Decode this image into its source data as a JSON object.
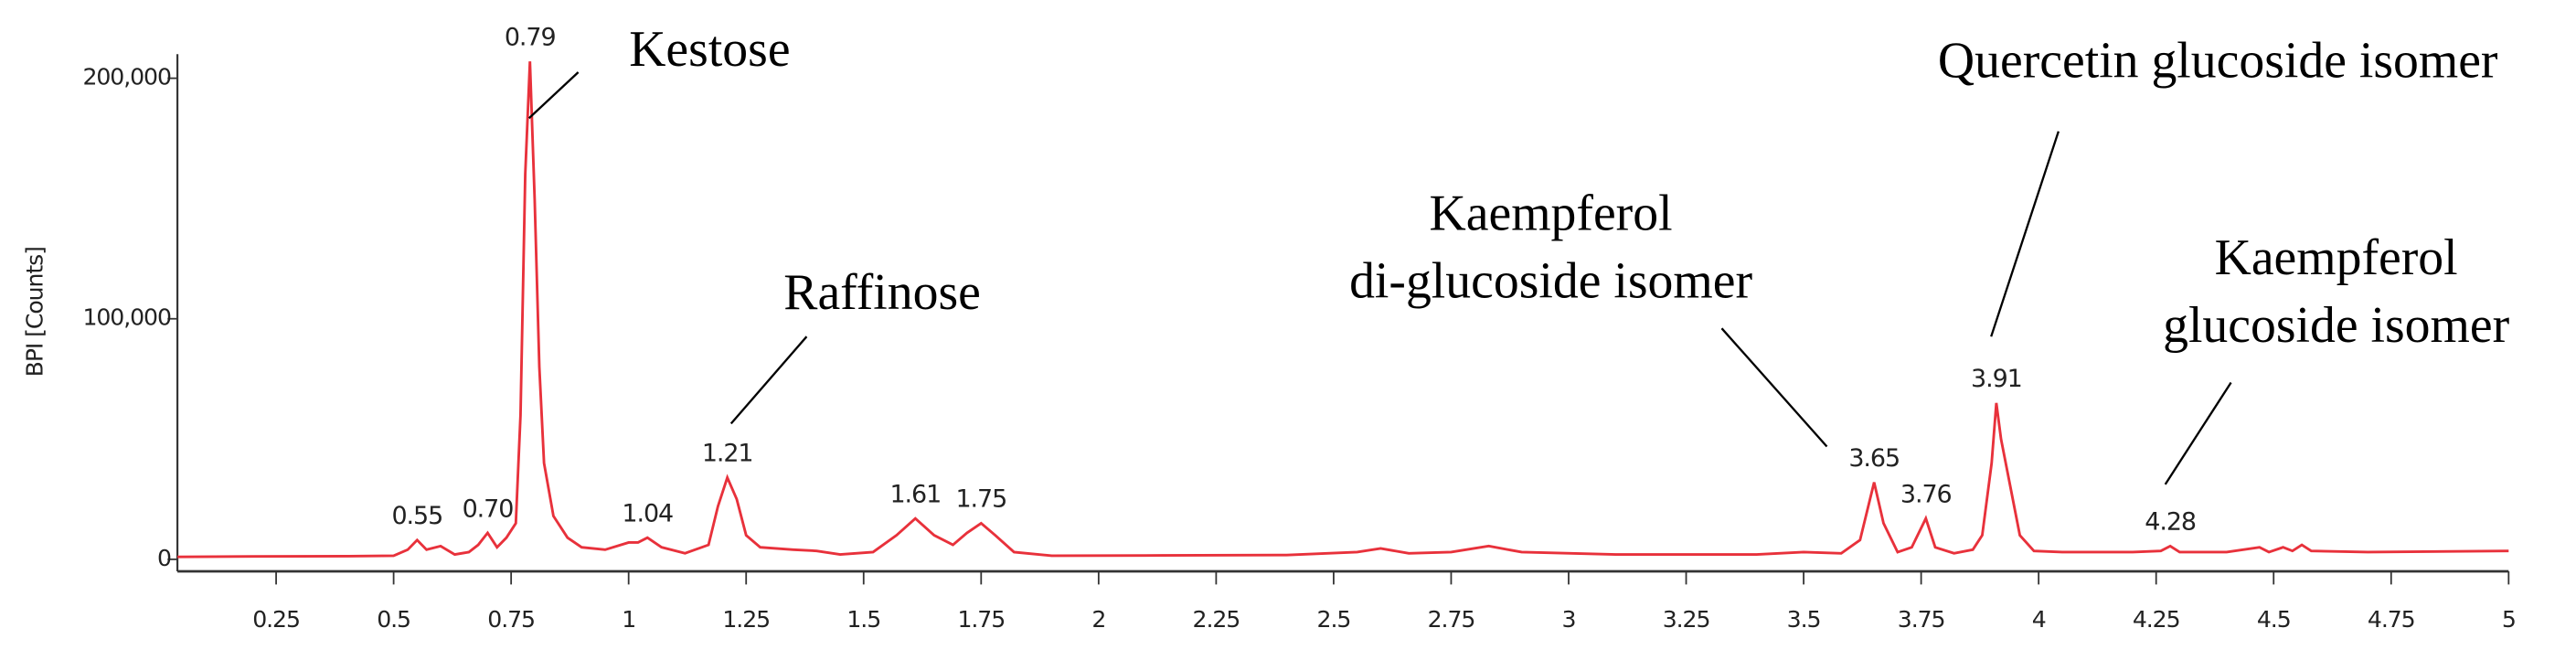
{
  "chart_data": {
    "type": "line",
    "y_label": "BPI [Counts]",
    "xlim": [
      0.04,
      5
    ],
    "ylim": [
      -5000,
      210000
    ],
    "xticks": [
      0.25,
      0.5,
      0.75,
      1,
      1.25,
      1.5,
      1.75,
      2,
      2.25,
      2.5,
      2.75,
      3,
      3.25,
      3.5,
      3.75,
      4,
      4.25,
      4.5,
      4.75,
      5
    ],
    "yticks": [
      0,
      {
        "value": 100000,
        "label": "100,000"
      },
      {
        "value": 200000,
        "label": "200,000"
      }
    ],
    "x": [
      0.04,
      0.2,
      0.4,
      0.5,
      0.53,
      0.55,
      0.57,
      0.6,
      0.63,
      0.66,
      0.68,
      0.7,
      0.72,
      0.74,
      0.76,
      0.77,
      0.78,
      0.79,
      0.8,
      0.81,
      0.82,
      0.84,
      0.87,
      0.9,
      0.95,
      1.0,
      1.02,
      1.04,
      1.07,
      1.12,
      1.17,
      1.19,
      1.21,
      1.23,
      1.25,
      1.28,
      1.35,
      1.4,
      1.45,
      1.52,
      1.57,
      1.61,
      1.65,
      1.69,
      1.72,
      1.75,
      1.78,
      1.82,
      1.9,
      2.1,
      2.4,
      2.55,
      2.6,
      2.66,
      2.75,
      2.83,
      2.9,
      3.1,
      3.4,
      3.5,
      3.58,
      3.62,
      3.65,
      3.67,
      3.7,
      3.73,
      3.76,
      3.78,
      3.82,
      3.86,
      3.88,
      3.9,
      3.91,
      3.92,
      3.94,
      3.96,
      3.99,
      4.05,
      4.2,
      4.26,
      4.28,
      4.3,
      4.4,
      4.47,
      4.49,
      4.52,
      4.54,
      4.56,
      4.58,
      4.7,
      5.0
    ],
    "series": [
      {
        "color": "#e8313b",
        "values": [
          1000,
          1200,
          1300,
          1500,
          4000,
          8000,
          4000,
          5500,
          2000,
          3000,
          6000,
          11000,
          5000,
          9000,
          15000,
          60000,
          160000,
          207000,
          150000,
          80000,
          40000,
          18000,
          9000,
          5000,
          4000,
          7000,
          7000,
          9000,
          5000,
          2500,
          6000,
          22000,
          34000,
          25000,
          10000,
          5000,
          4000,
          3500,
          2000,
          3000,
          10000,
          17000,
          10000,
          6000,
          11000,
          15000,
          10000,
          3000,
          1500,
          1600,
          1800,
          3000,
          4500,
          2500,
          3000,
          5500,
          3000,
          2000,
          2000,
          3000,
          2500,
          8000,
          32000,
          15000,
          3000,
          5000,
          17000,
          5000,
          2500,
          4000,
          10000,
          40000,
          65000,
          50000,
          30000,
          10000,
          3500,
          3000,
          3000,
          3500,
          5500,
          3000,
          3000,
          5000,
          3000,
          5000,
          3500,
          6000,
          3500,
          3000,
          3500
        ]
      }
    ],
    "peak_labels": [
      0.55,
      {
        "value": 0.7,
        "label": "0.70"
      },
      0.79,
      1.04,
      1.21,
      1.61,
      1.75,
      3.65,
      3.76,
      3.91,
      4.28
    ],
    "annotations": [
      [
        "Kestose"
      ],
      [
        "Raffinose"
      ],
      [
        "Kaempferol",
        "di-glucoside isomer"
      ],
      [
        "Quercetin glucoside isomer"
      ],
      [
        "Kaempferol",
        "glucoside isomer"
      ]
    ]
  }
}
